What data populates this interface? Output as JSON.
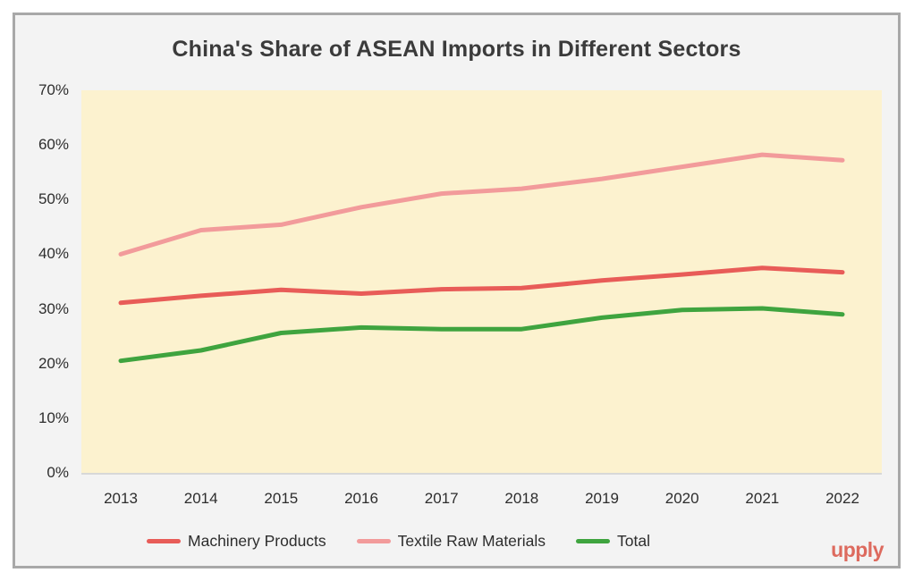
{
  "title": "China's Share of ASEAN Imports in Different Sectors",
  "watermark": "upply",
  "colors": {
    "page_bg": "#f3f3f3",
    "card_border": "#a8a8a8",
    "plot_bg": "#fcf2cf",
    "axis_line": "#d8d8d8",
    "tick_text": "#2d2d2d",
    "title_text": "#3b3b3b",
    "logo": "#dd6a5e"
  },
  "chart_data": {
    "type": "line",
    "title": "China's Share of ASEAN Imports in Different Sectors",
    "x": [
      "2013",
      "2014",
      "2015",
      "2016",
      "2017",
      "2018",
      "2019",
      "2020",
      "2021",
      "2022"
    ],
    "series": [
      {
        "name": "Machinery Products",
        "color": "#e85c58",
        "values": [
          31.1,
          32.4,
          33.5,
          32.8,
          33.6,
          33.8,
          35.2,
          36.3,
          37.5,
          36.7
        ]
      },
      {
        "name": "Textile Raw Materials",
        "color": "#f29b9b",
        "values": [
          40.0,
          44.4,
          45.4,
          48.6,
          51.1,
          52.0,
          53.8,
          56.0,
          58.2,
          57.2
        ]
      },
      {
        "name": "Total",
        "color": "#3fa43f",
        "values": [
          20.5,
          22.4,
          25.6,
          26.6,
          26.3,
          26.3,
          28.4,
          29.8,
          30.1,
          29.0
        ]
      }
    ],
    "xlabel": "",
    "ylabel": "",
    "ylim": [
      0,
      70
    ],
    "ytick_step": 10,
    "ytick_format": "percent",
    "grid": false,
    "legend_position": "bottom",
    "plot_background": "#fcf2cf"
  }
}
